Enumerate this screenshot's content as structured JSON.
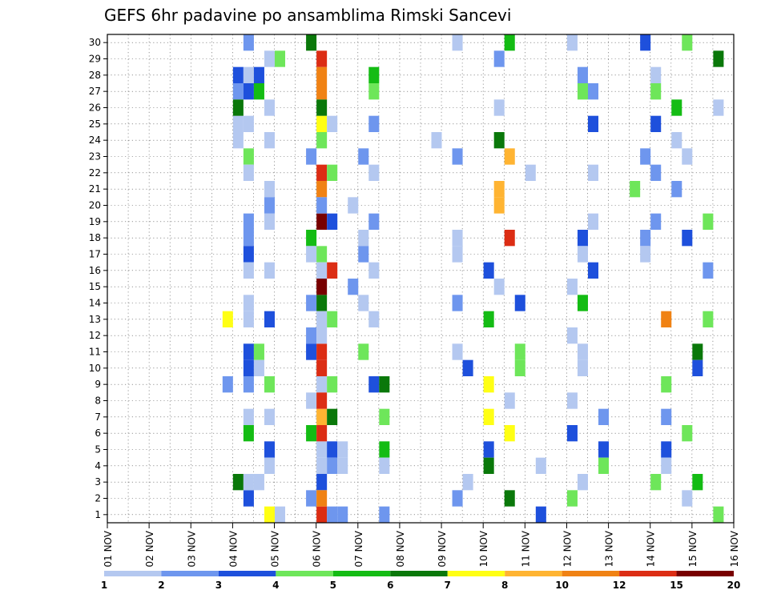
{
  "chart_data": {
    "type": "heatmap",
    "title": "GEFS 6hr padavine po ansamblima Rimski Sancevi",
    "xlabel": "",
    "ylabel": "",
    "x_ticks": [
      "01 NOV",
      "02 NOV",
      "03 NOV",
      "04 NOV",
      "05 NOV",
      "06 NOV",
      "07 NOV",
      "08 NOV",
      "09 NOV",
      "10 NOV",
      "11 NOV",
      "12 NOV",
      "13 NOV",
      "14 NOV",
      "15 NOV",
      "16 NOV"
    ],
    "y_ticks": [
      1,
      2,
      3,
      4,
      5,
      6,
      7,
      8,
      9,
      10,
      11,
      12,
      13,
      14,
      15,
      16,
      17,
      18,
      19,
      20,
      21,
      22,
      23,
      24,
      25,
      26,
      27,
      28,
      29,
      30
    ],
    "grid": true,
    "legend": {
      "placement": "bottom",
      "levels": [
        "1",
        "2",
        "3",
        "4",
        "5",
        "6",
        "7",
        "8",
        "10",
        "12",
        "15",
        "20"
      ],
      "colors": [
        "#b4c8f0",
        "#6e96ee",
        "#1e50dc",
        "#6ee65a",
        "#14bc14",
        "#0a780a",
        "#ffff14",
        "#ffb432",
        "#f08214",
        "#dc2d14",
        "#780000"
      ]
    },
    "cells": [
      [
        1,
        "04 NOV",
        1.5,
        6,
        3,
        2,
        1
      ],
      [
        3.5,
        7,
        2
      ],
      [
        3.75,
        6,
        1
      ],
      [
        4.0,
        5,
        3,
        2,
        4,
        2,
        3,
        1,
        3,
        3,
        1,
        1,
        3,
        1,
        1,
        2,
        1,
        1,
        2,
        1
      ],
      [
        4.25,
        4,
        1,
        1,
        3,
        5
      ],
      [
        4.5,
        1,
        1,
        3,
        4,
        1,
        3,
        1,
        7,
        1,
        1,
        1,
        1,
        2
      ],
      [
        4.75,
        1,
        4
      ],
      [
        5.5,
        2,
        1,
        5,
        2,
        6,
        2,
        5,
        1,
        2,
        3
      ],
      [
        5.75,
        4,
        6,
        10,
        10,
        3,
        9,
        9,
        7,
        10,
        11,
        1,
        1,
        1,
        8,
        1,
        1,
        10,
        10,
        6,
        4,
        9,
        2,
        11,
        12,
        10,
        10,
        9
      ],
      [
        6.0,
        1,
        4,
        3,
        10,
        4,
        4,
        6,
        3,
        2,
        2
      ],
      [
        6.25,
        1,
        1,
        2
      ],
      [
        6.5,
        1,
        2
      ],
      [
        6.75,
        2,
        1,
        2,
        1,
        4
      ],
      [
        7.0,
        5,
        4,
        2,
        1,
        2,
        1,
        1,
        3
      ],
      [
        7.25,
        6,
        4,
        5,
        1,
        2
      ],
      [
        8.5,
        1
      ],
      [
        9.0,
        2,
        1,
        2,
        1,
        1,
        2,
        1
      ],
      [
        9.25,
        3,
        1
      ],
      [
        9.75,
        3,
        5,
        7,
        7,
        3,
        6
      ],
      [
        10.0,
        2,
        1,
        6,
        8,
        8,
        1
      ],
      [
        10.25,
        1,
        7,
        6,
        5,
        8,
        10
      ],
      [
        10.5,
        3,
        4,
        4
      ],
      [
        10.75,
        1
      ],
      [
        11.0,
        1,
        3
      ],
      [
        11.75,
        1,
        1,
        1,
        3,
        4,
        1
      ],
      [
        12.0,
        3,
        1,
        5,
        1,
        1,
        1,
        2,
        4
      ],
      [
        12.25,
        2,
        3,
        1,
        1,
        3
      ],
      [
        12.5,
        2,
        3,
        4
      ],
      [
        13.25,
        4
      ],
      [
        13.5,
        3,
        2,
        2,
        1
      ],
      [
        13.75,
        4,
        1,
        4,
        3,
        2,
        2
      ],
      [
        14.0,
        9,
        4,
        2,
        3,
        1
      ],
      [
        14.25,
        5,
        1,
        2
      ],
      [
        14.5,
        4,
        1,
        4,
        1,
        3
      ],
      [
        14.75,
        6,
        3,
        5
      ],
      [
        15.0,
        4,
        2,
        4
      ],
      [
        15.25,
        4,
        6,
        1
      ],
      [
        15.5,
        1,
        2,
        3
      ],
      [
        15.75,
        3,
        4,
        3,
        1
      ]
    ],
    "note_cells_format": "coarse"
  }
}
